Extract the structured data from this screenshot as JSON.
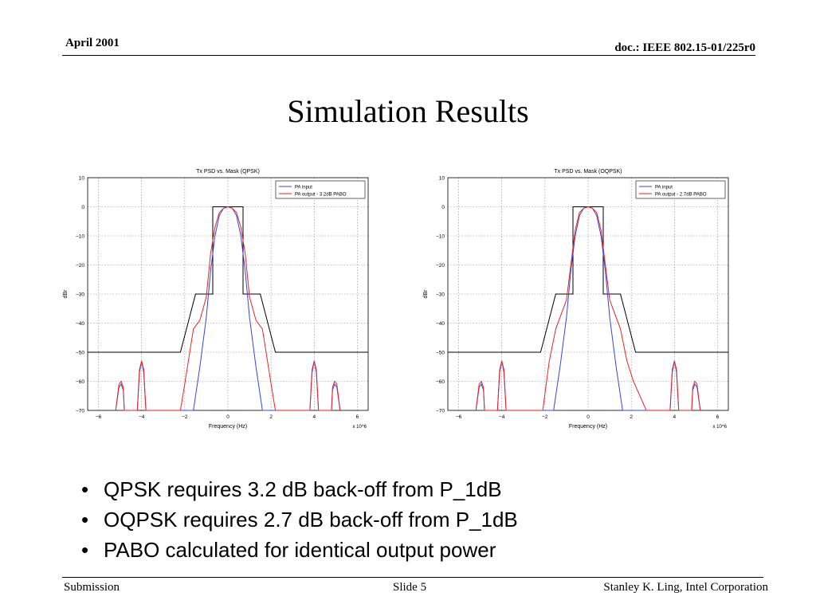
{
  "header": {
    "date": "April 2001",
    "doc": "doc.: IEEE 802.15-01/225r0"
  },
  "title": "Simulation Results",
  "bullets": [
    "QPSK requires 3.2 dB back-off from P_1dB",
    "OQPSK requires 2.7 dB back-off from P_1dB",
    "PABO calculated for identical output power"
  ],
  "footer": {
    "left": "Submission",
    "center": "Slide 5",
    "right": "Stanley K. Ling, Intel Corporation"
  },
  "colors": {
    "pa_input": "#3344ee",
    "pa_output": "#ee2222",
    "mask": "#000000",
    "grid": "#888888"
  },
  "chart_data": [
    {
      "type": "line",
      "title": "Tx PSD vs. Mask (QPSK)",
      "xlabel": "Frequency (Hz)",
      "ylabel": "dBr",
      "x_multiplier_label": "x 10^6",
      "xlim": [
        -6.5,
        6.5
      ],
      "ylim": [
        -70,
        10
      ],
      "xticks": [
        -6,
        -4,
        -2,
        0,
        2,
        4,
        6
      ],
      "yticks": [
        10,
        0,
        -10,
        -20,
        -30,
        -40,
        -50,
        -60,
        -70
      ],
      "grid": true,
      "legend_position": "top-right",
      "mask": {
        "x": [
          -6.5,
          -2.2,
          -1.5,
          -1.5,
          -0.7,
          -0.7,
          0.7,
          0.7,
          1.5,
          1.5,
          2.2,
          6.5
        ],
        "y": [
          -50,
          -50,
          -30,
          -30,
          -30,
          0,
          0,
          -30,
          -30,
          -30,
          -50,
          -50
        ]
      },
      "series": [
        {
          "name": "PA input",
          "x": [
            -5.2,
            -5.05,
            -4.95,
            -4.85,
            -4.8,
            -4.2,
            -4.1,
            -4.0,
            -3.9,
            -3.8,
            -1.6,
            -1.3,
            -1.0,
            -0.8,
            -0.6,
            -0.4,
            -0.2,
            0,
            0.2,
            0.4,
            0.6,
            0.8,
            1.0,
            1.3,
            1.6,
            3.8,
            3.9,
            4.0,
            4.1,
            4.2,
            4.8,
            4.85,
            4.95,
            5.05,
            5.2
          ],
          "y": [
            -70,
            -62,
            -61,
            -63,
            -70,
            -70,
            -57,
            -53,
            -57,
            -70,
            -70,
            -55,
            -38,
            -22,
            -10,
            -3,
            -0.5,
            0,
            -0.5,
            -3,
            -10,
            -22,
            -38,
            -55,
            -70,
            -70,
            -57,
            -53,
            -57,
            -70,
            -70,
            -63,
            -61,
            -62,
            -70
          ]
        },
        {
          "name": "PA output - 3.2dB PABO",
          "x": [
            -5.2,
            -5.05,
            -4.95,
            -4.85,
            -4.8,
            -4.2,
            -4.1,
            -4.0,
            -3.9,
            -3.8,
            -2.2,
            -2.0,
            -1.6,
            -1.3,
            -1.0,
            -0.8,
            -0.6,
            -0.4,
            -0.2,
            0,
            0.2,
            0.4,
            0.6,
            0.8,
            1.0,
            1.3,
            1.6,
            2.0,
            2.2,
            3.8,
            3.9,
            4.0,
            4.1,
            4.2,
            4.8,
            4.85,
            4.95,
            5.05,
            5.2
          ],
          "y": [
            -70,
            -61,
            -60,
            -62,
            -70,
            -70,
            -56,
            -53,
            -56,
            -70,
            -70,
            -61,
            -42,
            -39,
            -31,
            -16,
            -7,
            -2,
            -0.5,
            0,
            -0.5,
            -2,
            -7,
            -16,
            -31,
            -39,
            -42,
            -61,
            -70,
            -70,
            -56,
            -53,
            -56,
            -70,
            -70,
            -62,
            -60,
            -61,
            -70
          ]
        }
      ]
    },
    {
      "type": "line",
      "title": "Tx PSD vs. Mask (OQPSK)",
      "xlabel": "Frequency (Hz)",
      "ylabel": "dBr",
      "x_multiplier_label": "x 10^6",
      "xlim": [
        -6.5,
        6.5
      ],
      "ylim": [
        -70,
        10
      ],
      "xticks": [
        -6,
        -4,
        -2,
        0,
        2,
        4,
        6
      ],
      "yticks": [
        10,
        0,
        -10,
        -20,
        -30,
        -40,
        -50,
        -60,
        -70
      ],
      "grid": true,
      "legend_position": "top-right",
      "mask": {
        "x": [
          -6.5,
          -2.2,
          -1.5,
          -1.5,
          -0.7,
          -0.7,
          0.7,
          0.7,
          1.5,
          1.5,
          2.2,
          6.5
        ],
        "y": [
          -50,
          -50,
          -30,
          -30,
          -30,
          0,
          0,
          -30,
          -30,
          -30,
          -50,
          -50
        ]
      },
      "series": [
        {
          "name": "PA input",
          "x": [
            -5.2,
            -5.05,
            -4.95,
            -4.85,
            -4.8,
            -4.2,
            -4.1,
            -4.0,
            -3.9,
            -3.8,
            -1.6,
            -1.3,
            -1.0,
            -0.8,
            -0.6,
            -0.4,
            -0.2,
            0,
            0.2,
            0.4,
            0.6,
            0.8,
            1.0,
            1.3,
            1.6,
            3.8,
            3.9,
            4.0,
            4.1,
            4.2,
            4.8,
            4.85,
            4.95,
            5.05,
            5.2
          ],
          "y": [
            -70,
            -62,
            -61,
            -63,
            -70,
            -70,
            -57,
            -53,
            -57,
            -70,
            -70,
            -55,
            -38,
            -22,
            -10,
            -3,
            -0.5,
            0,
            -0.5,
            -3,
            -10,
            -22,
            -38,
            -55,
            -70,
            -70,
            -57,
            -53,
            -57,
            -70,
            -70,
            -63,
            -61,
            -62,
            -70
          ]
        },
        {
          "name": "PA output - 2.7dB PABO",
          "x": [
            -5.2,
            -5.05,
            -4.95,
            -4.85,
            -4.8,
            -4.2,
            -4.1,
            -4.0,
            -3.9,
            -3.8,
            -2.1,
            -1.8,
            -1.5,
            -1.2,
            -1.0,
            -0.8,
            -0.6,
            -0.4,
            -0.2,
            0,
            0.2,
            0.4,
            0.6,
            0.8,
            1.0,
            1.2,
            1.5,
            1.8,
            2.1,
            2.7,
            3.8,
            3.9,
            4.0,
            4.1,
            4.2,
            4.8,
            4.85,
            4.95,
            5.05,
            5.2
          ],
          "y": [
            -70,
            -61,
            -60,
            -62,
            -70,
            -70,
            -56,
            -53,
            -56,
            -70,
            -70,
            -53,
            -42,
            -36,
            -32,
            -20,
            -8,
            -2,
            -0.5,
            0,
            -0.5,
            -2,
            -8,
            -20,
            -32,
            -36,
            -42,
            -53,
            -60,
            -70,
            -70,
            -56,
            -53,
            -56,
            -70,
            -70,
            -62,
            -60,
            -61,
            -70
          ]
        }
      ]
    }
  ]
}
